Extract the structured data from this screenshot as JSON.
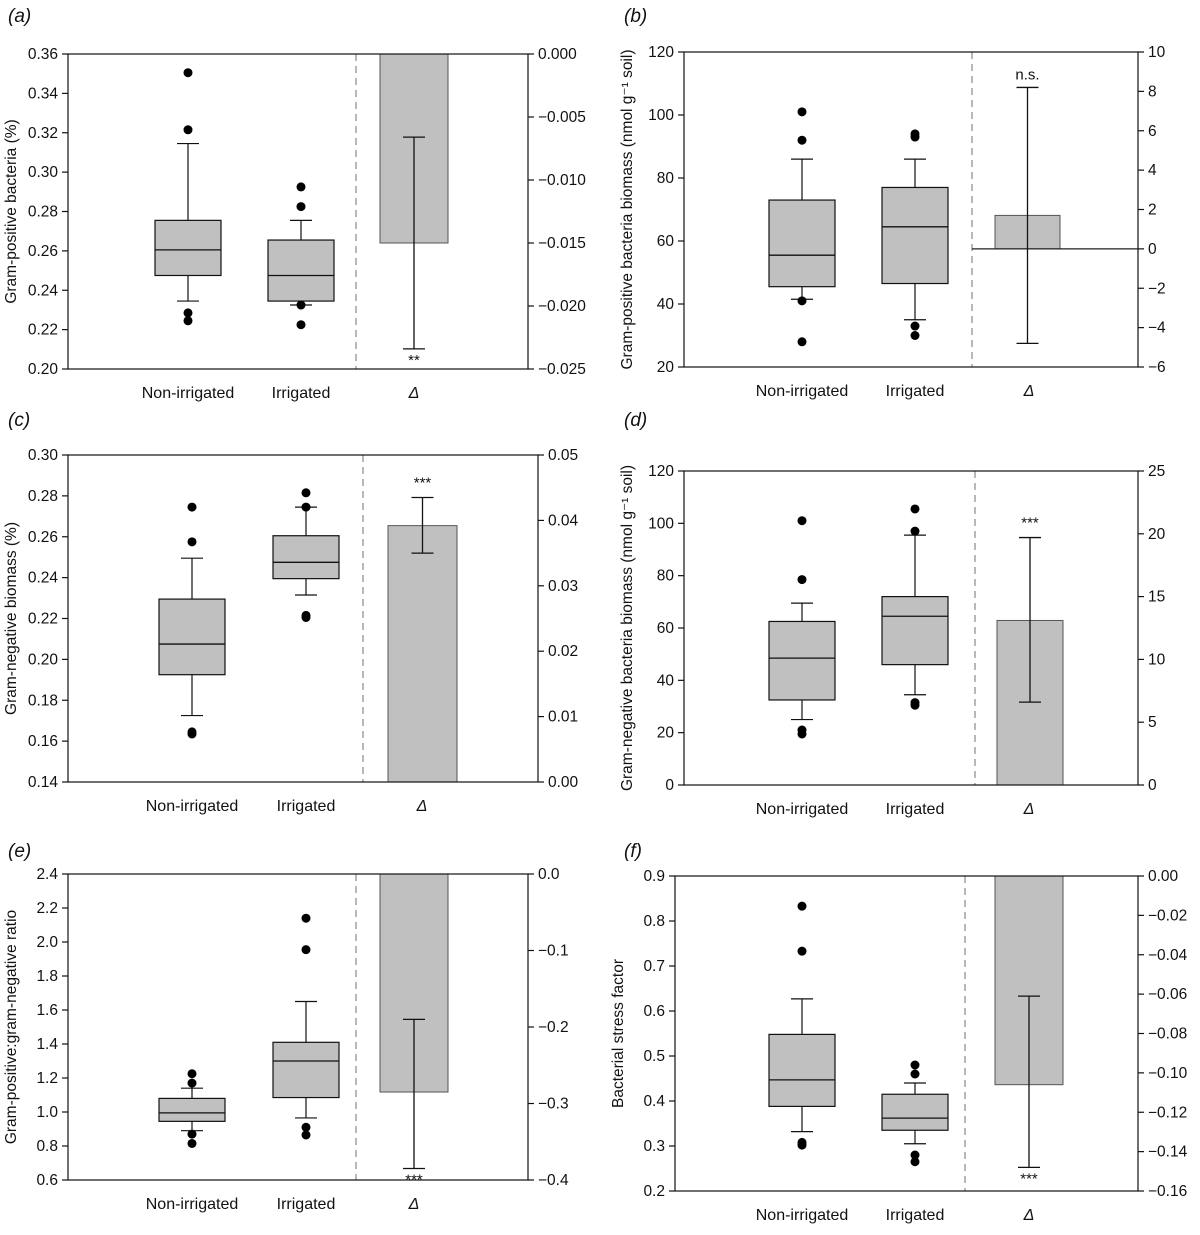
{
  "chart_data": [
    {
      "panel": "(a)",
      "type": "box",
      "ylabel": "Gram-positive bacteria (%)",
      "categories": [
        "Non-irrigated",
        "Irrigated",
        "Δ"
      ],
      "ylim": [
        0.2,
        0.36
      ],
      "yticks": [
        "0.20",
        "0.22",
        "0.24",
        "0.26",
        "0.28",
        "0.30",
        "0.32",
        "0.34",
        "0.36"
      ],
      "boxes": [
        {
          "name": "Non-irrigated",
          "whisker_low": 0.2345,
          "q1": 0.2475,
          "median": 0.2605,
          "q3": 0.2755,
          "whisker_high": 0.3145,
          "outliers": [
            0.3505,
            0.3215,
            0.2285,
            0.2245
          ]
        },
        {
          "name": "Irrigated",
          "whisker_low": 0.2325,
          "q1": 0.2345,
          "median": 0.2475,
          "q3": 0.2655,
          "whisker_high": 0.2755,
          "outliers": [
            0.2925,
            0.2825,
            0.2325,
            0.2225
          ]
        }
      ],
      "delta": {
        "y2lim": [
          -0.025,
          0.0
        ],
        "y2ticks": [
          "0.000",
          "−0.005",
          "−0.010",
          "−0.015",
          "−0.020",
          "−0.025"
        ],
        "value": -0.015,
        "err_low": -0.0234,
        "err_high": -0.0066,
        "significance": "**"
      }
    },
    {
      "panel": "(b)",
      "type": "box",
      "ylabel": "Gram-positive bacteria biomass (nmol g⁻¹ soil)",
      "categories": [
        "Non-irrigated",
        "Irrigated",
        "Δ"
      ],
      "ylim": [
        20,
        120
      ],
      "yticks": [
        "20",
        "40",
        "60",
        "80",
        "100",
        "120"
      ],
      "boxes": [
        {
          "name": "Non-irrigated",
          "whisker_low": 41.5,
          "q1": 45.5,
          "median": 55.5,
          "q3": 73,
          "whisker_high": 86,
          "outliers": [
            101,
            92,
            41,
            28
          ]
        },
        {
          "name": "Irrigated",
          "whisker_low": 35,
          "q1": 46.5,
          "median": 64.5,
          "q3": 77,
          "whisker_high": 86,
          "outliers": [
            94,
            93,
            33,
            30
          ]
        }
      ],
      "delta": {
        "y2lim": [
          -6,
          10
        ],
        "y2ticks": [
          "10",
          "8",
          "6",
          "4",
          "2",
          "0",
          "−2",
          "−4",
          "−6"
        ],
        "value": 1.7,
        "err_low": -4.8,
        "err_high": 8.2,
        "significance": "n.s."
      }
    },
    {
      "panel": "(c)",
      "type": "box",
      "ylabel": "Gram-negative biomass (%)",
      "categories": [
        "Non-irrigated",
        "Irrigated",
        "Δ"
      ],
      "ylim": [
        0.14,
        0.3
      ],
      "yticks": [
        "0.14",
        "0.16",
        "0.18",
        "0.20",
        "0.22",
        "0.24",
        "0.26",
        "0.28",
        "0.30"
      ],
      "boxes": [
        {
          "name": "Non-irrigated",
          "whisker_low": 0.1725,
          "q1": 0.1925,
          "median": 0.2075,
          "q3": 0.2295,
          "whisker_high": 0.2495,
          "outliers": [
            0.2745,
            0.2575,
            0.1645,
            0.1635
          ]
        },
        {
          "name": "Irrigated",
          "whisker_low": 0.2315,
          "q1": 0.2395,
          "median": 0.2475,
          "q3": 0.2605,
          "whisker_high": 0.2745,
          "outliers": [
            0.2815,
            0.2745,
            0.2215,
            0.2205
          ]
        }
      ],
      "delta": {
        "y2lim": [
          0.0,
          0.05
        ],
        "y2ticks": [
          "0.05",
          "0.04",
          "0.03",
          "0.02",
          "0.01",
          "0.00"
        ],
        "value": 0.0392,
        "err_low": 0.035,
        "err_high": 0.0435,
        "significance": "***"
      }
    },
    {
      "panel": "(d)",
      "type": "box",
      "ylabel": "Gram-negative bacteria biomass (nmol g⁻¹ soil)",
      "categories": [
        "Non-irrigated",
        "Irrigated",
        "Δ"
      ],
      "ylim": [
        0,
        120
      ],
      "yticks": [
        "0",
        "20",
        "40",
        "60",
        "80",
        "100",
        "120"
      ],
      "boxes": [
        {
          "name": "Non-irrigated",
          "whisker_low": 25,
          "q1": 32.5,
          "median": 48.5,
          "q3": 62.5,
          "whisker_high": 69.5,
          "outliers": [
            101,
            78.5,
            21,
            19.5
          ]
        },
        {
          "name": "Irrigated",
          "whisker_low": 34.5,
          "q1": 46,
          "median": 64.5,
          "q3": 72,
          "whisker_high": 95.5,
          "outliers": [
            105.5,
            97,
            31.5,
            30.5
          ]
        }
      ],
      "delta": {
        "y2lim": [
          0,
          25
        ],
        "y2ticks": [
          "25",
          "20",
          "15",
          "10",
          "5",
          "0"
        ],
        "value": 13.1,
        "err_low": 6.6,
        "err_high": 19.7,
        "significance": "***"
      }
    },
    {
      "panel": "(e)",
      "type": "box",
      "ylabel": "Gram-positive:gram-negative ratio",
      "categories": [
        "Non-irrigated",
        "Irrigated",
        "Δ"
      ],
      "ylim": [
        0.6,
        2.4
      ],
      "yticks": [
        "0.6",
        "0.8",
        "1.0",
        "1.2",
        "1.4",
        "1.6",
        "1.8",
        "2.0",
        "2.2",
        "2.4"
      ],
      "boxes": [
        {
          "name": "Non-irrigated",
          "whisker_low": 0.89,
          "q1": 0.945,
          "median": 0.995,
          "q3": 1.08,
          "whisker_high": 1.14,
          "outliers": [
            1.225,
            1.17,
            0.87,
            0.815
          ]
        },
        {
          "name": "Irrigated",
          "whisker_low": 0.965,
          "q1": 1.085,
          "median": 1.3,
          "q3": 1.41,
          "whisker_high": 1.65,
          "outliers": [
            2.14,
            1.955,
            0.91,
            0.865
          ]
        }
      ],
      "delta": {
        "y2lim": [
          -0.4,
          0.0
        ],
        "y2ticks": [
          "0.0",
          "−0.1",
          "−0.2",
          "−0.3",
          "−0.4"
        ],
        "value": -0.285,
        "err_low": -0.385,
        "err_high": -0.19,
        "significance": "***"
      }
    },
    {
      "panel": "(f)",
      "type": "box",
      "ylabel": "Bacterial stress factor",
      "categories": [
        "Non-irrigated",
        "Irrigated",
        "Δ"
      ],
      "ylim": [
        0.2,
        0.9
      ],
      "yticks": [
        "0.2",
        "0.3",
        "0.4",
        "0.5",
        "0.6",
        "0.7",
        "0.8",
        "0.9"
      ],
      "boxes": [
        {
          "name": "Non-irrigated",
          "whisker_low": 0.332,
          "q1": 0.388,
          "median": 0.447,
          "q3": 0.548,
          "whisker_high": 0.627,
          "outliers": [
            0.833,
            0.733,
            0.308,
            0.302
          ]
        },
        {
          "name": "Irrigated",
          "whisker_low": 0.305,
          "q1": 0.335,
          "median": 0.362,
          "q3": 0.415,
          "whisker_high": 0.44,
          "outliers": [
            0.48,
            0.46,
            0.28,
            0.265
          ]
        }
      ],
      "delta": {
        "y2lim": [
          -0.16,
          0.0
        ],
        "y2ticks": [
          "0.00",
          "−0.02",
          "−0.04",
          "−0.06",
          "−0.08",
          "−0.10",
          "−0.12",
          "−0.14",
          "−0.16"
        ],
        "value": -0.106,
        "err_low": -0.148,
        "err_high": -0.061,
        "significance": "***"
      }
    }
  ]
}
